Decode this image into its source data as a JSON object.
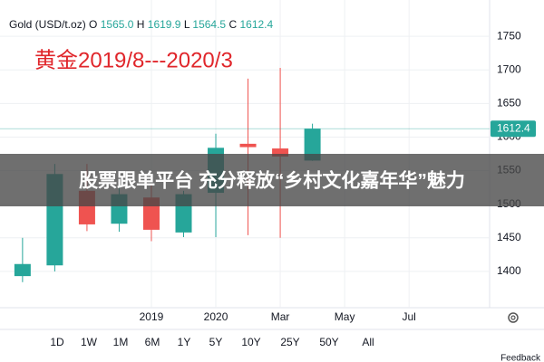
{
  "chart_data": {
    "type": "candlestick",
    "legend": {
      "symbol": "Gold (USD/t.oz)",
      "items": [
        {
          "key": "O",
          "value": "1565.0"
        },
        {
          "key": "H",
          "value": "1619.9"
        },
        {
          "key": "L",
          "value": "1564.5"
        },
        {
          "key": "C",
          "value": "1612.4"
        }
      ]
    },
    "annotation": "黄金2019/8---2020/3",
    "open": [
      1393,
      1409,
      1520,
      1471,
      1510,
      1458,
      1517,
      1590,
      1583,
      1565
    ],
    "high": [
      1450,
      1560,
      1560,
      1535,
      1530,
      1520,
      1605,
      1687,
      1703,
      1619.9
    ],
    "low": [
      1384,
      1400,
      1460,
      1459,
      1445,
      1451,
      1451,
      1454,
      1450,
      1564.5
    ],
    "close": [
      1411,
      1545,
      1470,
      1515,
      1462,
      1515,
      1584,
      1585,
      1571,
      1612.4
    ],
    "up_color": "#26a69a",
    "down_color": "#ef5350",
    "xlim": [
      -0.7,
      14.5
    ],
    "xticks": [
      {
        "value": 4,
        "label": "2019"
      },
      {
        "value": 6,
        "label": "2020"
      },
      {
        "value": 8,
        "label": "Mar"
      },
      {
        "value": 10,
        "label": "May"
      },
      {
        "value": 12,
        "label": "Jul"
      }
    ],
    "ylim": [
      1346,
      1804
    ],
    "yticks": [
      1400,
      1450,
      1500,
      1550,
      1600,
      1650,
      1700,
      1750
    ],
    "grid": true,
    "ranges": [
      "1D",
      "1W",
      "1M",
      "6M",
      "1Y",
      "5Y",
      "10Y",
      "25Y",
      "50Y",
      "All"
    ],
    "banner": "股票跟单平台 充分释放“乡村文化嘉年华”魅力",
    "feedback": "Feedback"
  }
}
